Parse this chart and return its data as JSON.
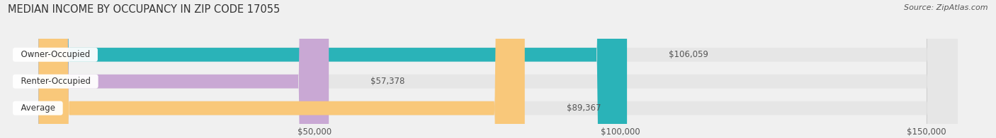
{
  "title": "MEDIAN INCOME BY OCCUPANCY IN ZIP CODE 17055",
  "source": "Source: ZipAtlas.com",
  "categories": [
    "Owner-Occupied",
    "Renter-Occupied",
    "Average"
  ],
  "values": [
    106059,
    57378,
    89367
  ],
  "bar_colors": [
    "#2ab3b8",
    "#c9a8d4",
    "#f9c87a"
  ],
  "bar_labels": [
    "$106,059",
    "$57,378",
    "$89,367"
  ],
  "xlim": [
    0,
    160000
  ],
  "xticks": [
    50000,
    100000,
    150000
  ],
  "xtick_labels": [
    "$50,000",
    "$100,000",
    "$150,000"
  ],
  "background_color": "#f0f0f0",
  "bar_bg_color": "#e6e6e6",
  "title_fontsize": 10.5,
  "source_fontsize": 8,
  "label_fontsize": 8.5,
  "tick_fontsize": 8.5,
  "bar_height": 0.52,
  "label_color": "#555555",
  "title_color": "#333333"
}
